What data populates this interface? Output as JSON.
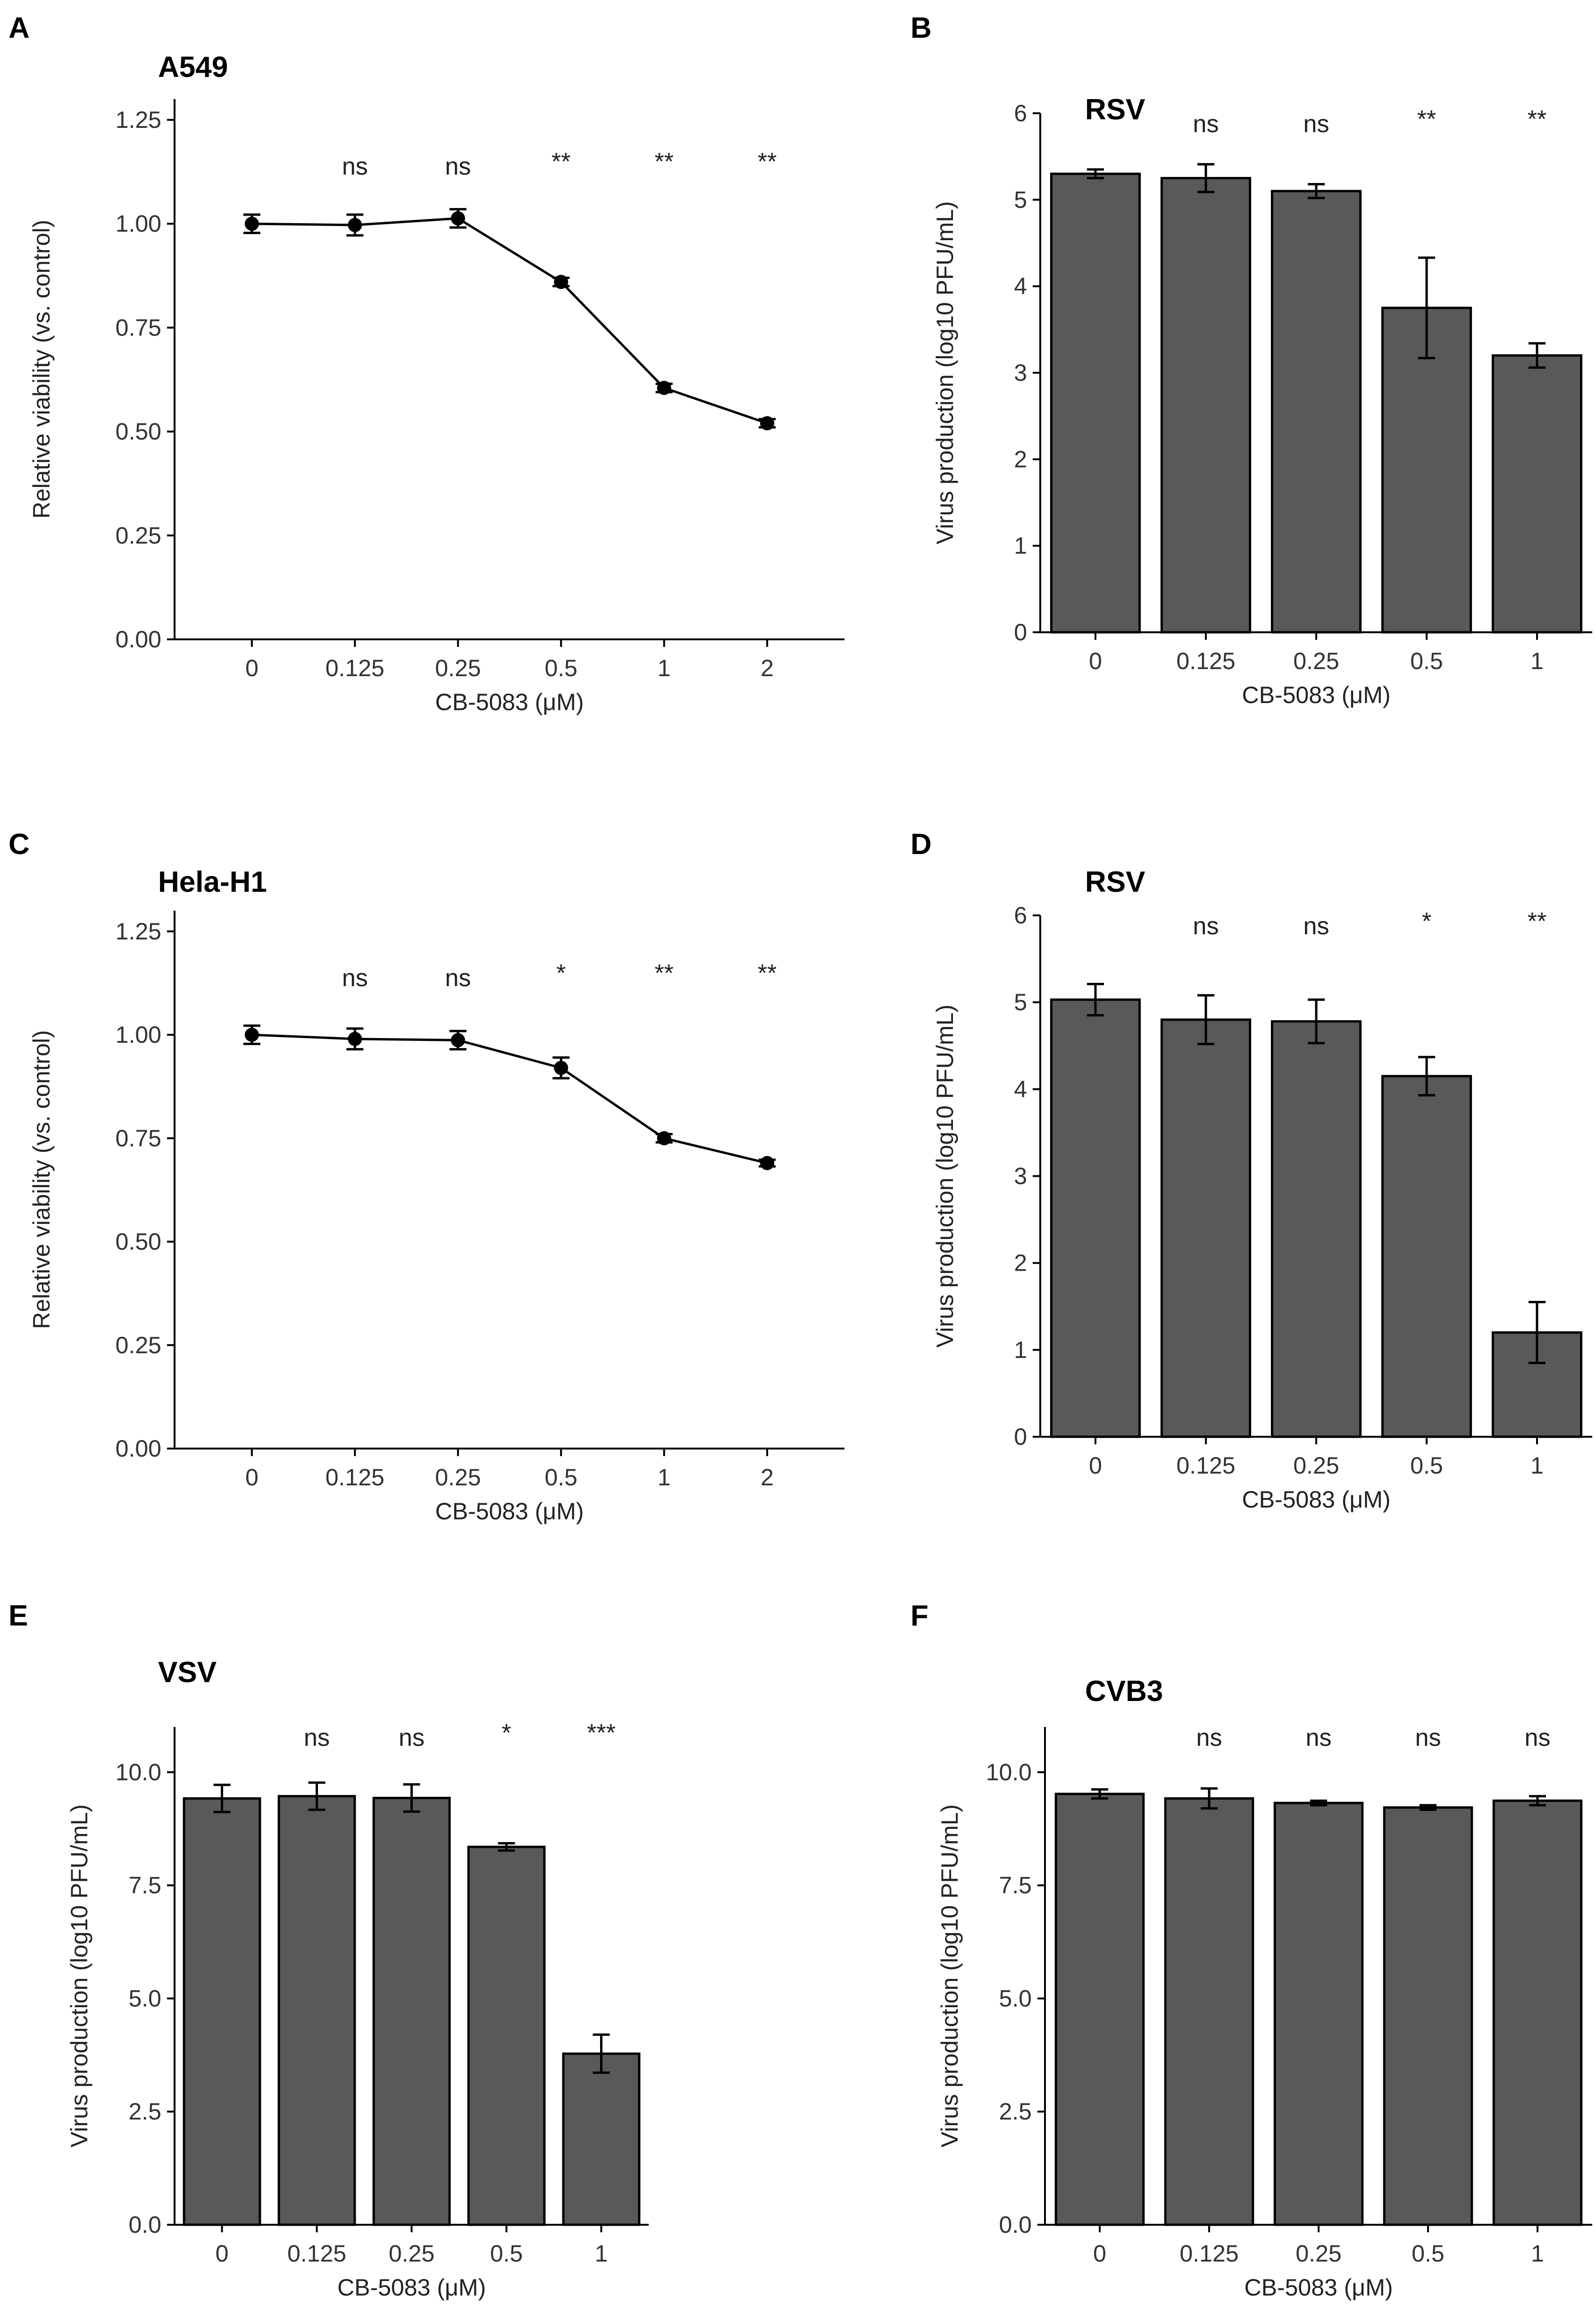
{
  "figure": {
    "chart_data": [
      {
        "panel": "A",
        "type": "line",
        "title": "A549",
        "xlabel": "CB-5083 (μM)",
        "ylabel": "Relative viability (vs. control)",
        "categories": [
          "0",
          "0.125",
          "0.25",
          "0.5",
          "1",
          "2"
        ],
        "values": [
          1.0,
          0.997,
          1.013,
          0.86,
          0.605,
          0.52
        ],
        "errors": [
          0.022,
          0.025,
          0.022,
          0.01,
          0.01,
          0.01
        ],
        "significance": [
          "",
          "ns",
          "ns",
          "**",
          "**",
          "**"
        ],
        "ylim": [
          0,
          1.3
        ],
        "yticks": [
          0,
          0.25,
          0.5,
          0.75,
          1.0,
          1.25
        ],
        "ytick_labels": [
          "0.00",
          "0.25",
          "0.50",
          "0.75",
          "1.00",
          "1.25"
        ]
      },
      {
        "panel": "B",
        "type": "bar",
        "title": "RSV",
        "xlabel": "CB-5083 (μM)",
        "ylabel": "Virus production (log10 PFU/mL)",
        "categories": [
          "0",
          "0.125",
          "0.25",
          "0.5",
          "1"
        ],
        "values": [
          5.3,
          5.25,
          5.1,
          3.75,
          3.2
        ],
        "errors": [
          0.05,
          0.16,
          0.08,
          0.58,
          0.14
        ],
        "significance": [
          "",
          "ns",
          "ns",
          "**",
          "**"
        ],
        "ylim": [
          0,
          6
        ],
        "yticks": [
          0,
          1,
          2,
          3,
          4,
          5,
          6
        ],
        "ytick_labels": [
          "0",
          "1",
          "2",
          "3",
          "4",
          "5",
          "6"
        ]
      },
      {
        "panel": "C",
        "type": "line",
        "title": "Hela-H1",
        "xlabel": "CB-5083 (μM)",
        "ylabel": "Relative viability (vs. control)",
        "categories": [
          "0",
          "0.125",
          "0.25",
          "0.5",
          "1",
          "2"
        ],
        "values": [
          1.0,
          0.99,
          0.987,
          0.92,
          0.75,
          0.69
        ],
        "errors": [
          0.022,
          0.025,
          0.022,
          0.025,
          0.01,
          0.008
        ],
        "significance": [
          "",
          "ns",
          "ns",
          "*",
          "**",
          "**"
        ],
        "ylim": [
          0,
          1.3
        ],
        "yticks": [
          0,
          0.25,
          0.5,
          0.75,
          1.0,
          1.25
        ],
        "ytick_labels": [
          "0.00",
          "0.25",
          "0.50",
          "0.75",
          "1.00",
          "1.25"
        ]
      },
      {
        "panel": "D",
        "type": "bar",
        "title": "RSV",
        "xlabel": "CB-5083 (μM)",
        "ylabel": "Virus production (log10 PFU/mL)",
        "categories": [
          "0",
          "0.125",
          "0.25",
          "0.5",
          "1"
        ],
        "values": [
          5.03,
          4.8,
          4.78,
          4.15,
          1.2
        ],
        "errors": [
          0.18,
          0.28,
          0.25,
          0.22,
          0.35
        ],
        "significance": [
          "",
          "ns",
          "ns",
          "*",
          "**"
        ],
        "ylim": [
          0,
          6
        ],
        "yticks": [
          0,
          1,
          2,
          3,
          4,
          5,
          6
        ],
        "ytick_labels": [
          "0",
          "1",
          "2",
          "3",
          "4",
          "5",
          "6"
        ]
      },
      {
        "panel": "E",
        "type": "bar",
        "title": "VSV",
        "xlabel": "CB-5083 (μM)",
        "ylabel": "Virus production (log10 PFU/mL)",
        "categories": [
          "0",
          "0.125",
          "0.25",
          "0.5",
          "1"
        ],
        "values": [
          9.42,
          9.47,
          9.43,
          8.35,
          3.78
        ],
        "errors": [
          0.3,
          0.3,
          0.3,
          0.08,
          0.42
        ],
        "significance": [
          "",
          "ns",
          "ns",
          "*",
          "***"
        ],
        "ylim": [
          0,
          11
        ],
        "yticks": [
          0,
          2.5,
          5,
          7.5,
          10
        ],
        "ytick_labels": [
          "0.0",
          "2.5",
          "5.0",
          "7.5",
          "10.0"
        ]
      },
      {
        "panel": "F",
        "type": "bar",
        "title": "CVB3",
        "xlabel": "CB-5083 (μM)",
        "ylabel": "Virus production (log10 PFU/mL)",
        "categories": [
          "0",
          "0.125",
          "0.25",
          "0.5",
          "1"
        ],
        "values": [
          9.52,
          9.42,
          9.32,
          9.22,
          9.37
        ],
        "errors": [
          0.1,
          0.22,
          0.05,
          0.05,
          0.1
        ],
        "significance": [
          "",
          "ns",
          "ns",
          "ns",
          "ns"
        ],
        "ylim": [
          0,
          11
        ],
        "yticks": [
          0,
          2.5,
          5,
          7.5,
          10
        ],
        "ytick_labels": [
          "0.0",
          "2.5",
          "5.0",
          "7.5",
          "10.0"
        ]
      }
    ]
  }
}
